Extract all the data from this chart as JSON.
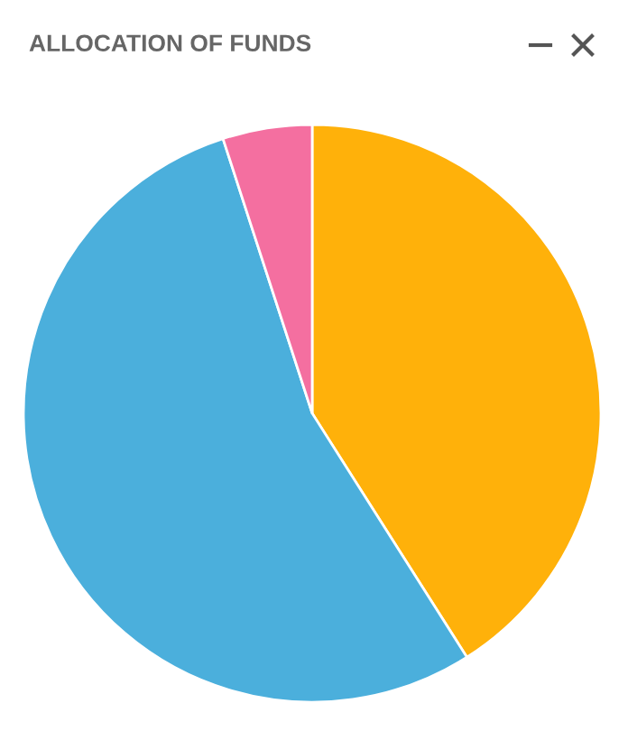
{
  "chart_data": {
    "type": "pie",
    "title": "ALLOCATION OF FUNDS",
    "categories": [
      null,
      null,
      null
    ],
    "values": [
      41,
      54,
      5
    ],
    "colors": [
      "#ffb10a",
      "#4bafdc",
      "#f46fa0"
    ]
  }
}
